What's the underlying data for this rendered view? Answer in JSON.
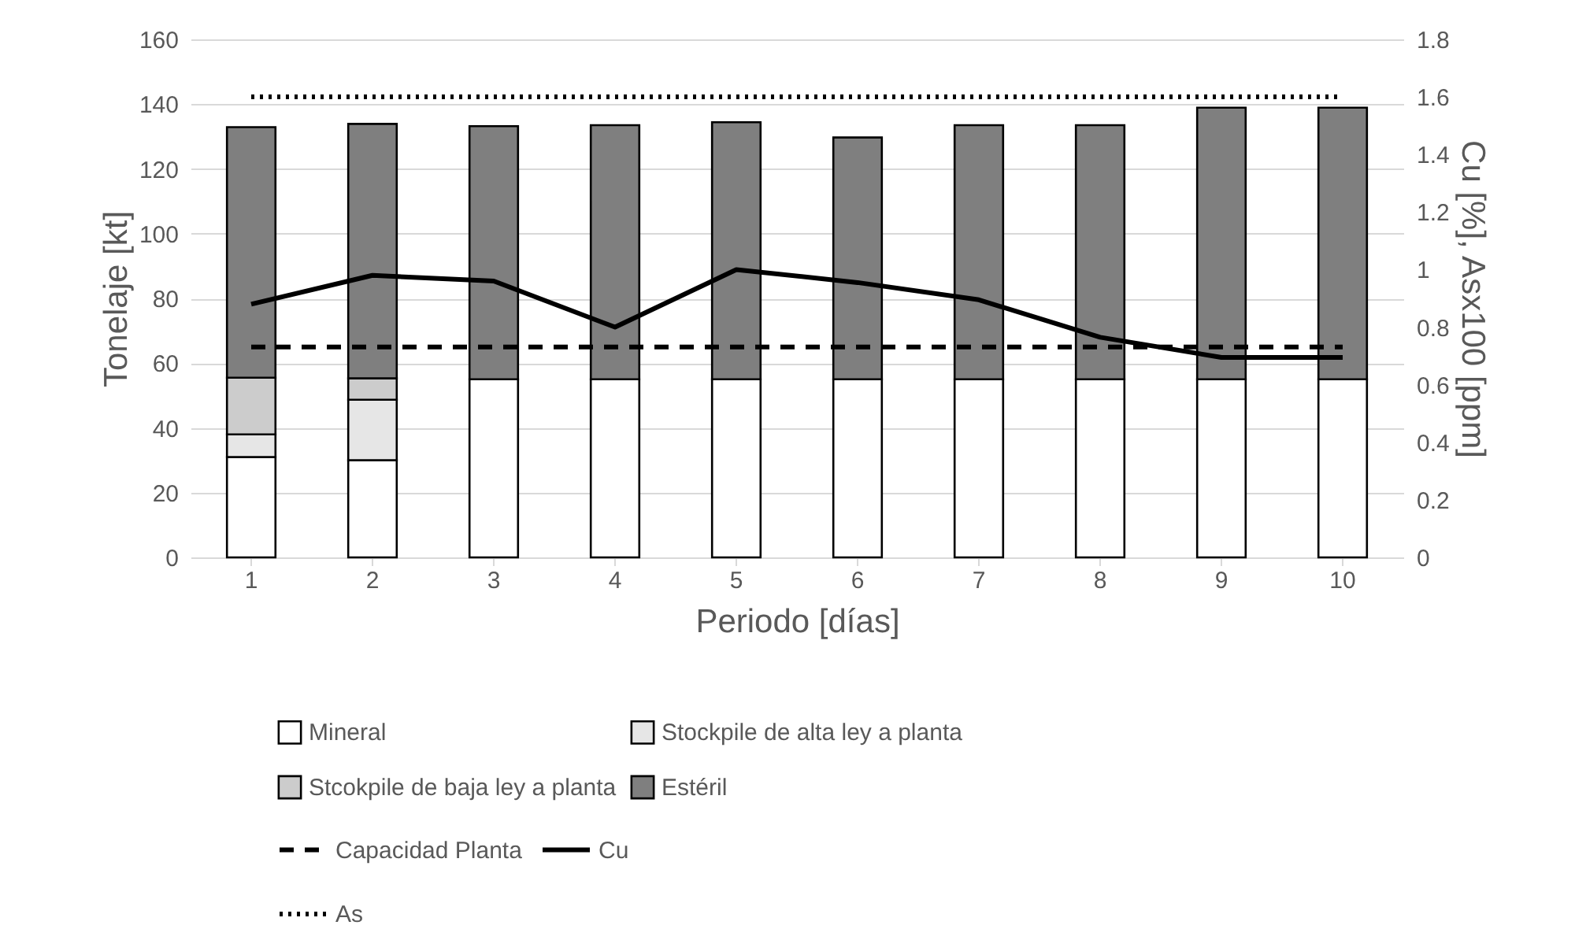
{
  "chart_data": {
    "type": "bar",
    "stacked": true,
    "xlabel": "Periodo [días]",
    "ylabel": "Tonelaje [kt]",
    "y2label": "Cu [%], Asx100 [ppm]",
    "categories": [
      "1",
      "2",
      "3",
      "4",
      "5",
      "6",
      "7",
      "8",
      "9",
      "10"
    ],
    "ylim": [
      0,
      160
    ],
    "yticks": [
      0,
      20,
      40,
      60,
      80,
      100,
      120,
      140,
      160
    ],
    "y2lim": [
      0,
      1.8
    ],
    "y2ticks": [
      0,
      0.2,
      0.4,
      0.6,
      0.8,
      1,
      1.2,
      1.4,
      1.6,
      1.8
    ],
    "grid": "y",
    "legend": "bottom",
    "series": [
      {
        "name": "Mineral",
        "color": "#ffffff",
        "values": [
          31,
          30,
          55,
          55,
          55,
          55,
          55,
          55,
          55,
          55
        ]
      },
      {
        "name": "Stockpile de alta ley a planta",
        "color": "#e6e6e6",
        "values": [
          7,
          18.7,
          null,
          null,
          null,
          null,
          null,
          null,
          null,
          null
        ]
      },
      {
        "name": "Stcokpile de baja ley a planta",
        "color": "#cccccc",
        "values": [
          17.5,
          6.6,
          null,
          null,
          null,
          null,
          null,
          null,
          null,
          null
        ]
      },
      {
        "name": "Estéril",
        "color": "#7f7f7f",
        "values": [
          77.4,
          78.6,
          78.2,
          78.5,
          79.4,
          74.7,
          78.5,
          78.5,
          83.9,
          83.9
        ]
      },
      {
        "name": "Capacidad Planta",
        "type": "line",
        "line_style": "dashed",
        "color": "#000000",
        "values": [
          65,
          65,
          65,
          65,
          65,
          65,
          65,
          65,
          65,
          65
        ]
      },
      {
        "name": "Cu",
        "type": "line",
        "axis": "y2",
        "line_style": "solid",
        "color": "#000000",
        "values": [
          0.88,
          0.98,
          0.96,
          0.8,
          1.0,
          0.955,
          0.895,
          0.765,
          0.695,
          0.695
        ]
      },
      {
        "name": "As",
        "type": "line",
        "axis": "y2",
        "line_style": "dotted",
        "color": "#000000",
        "values": [
          1.6,
          1.6,
          1.6,
          1.6,
          1.6,
          1.6,
          1.6,
          1.6,
          1.6,
          1.6
        ]
      }
    ]
  }
}
